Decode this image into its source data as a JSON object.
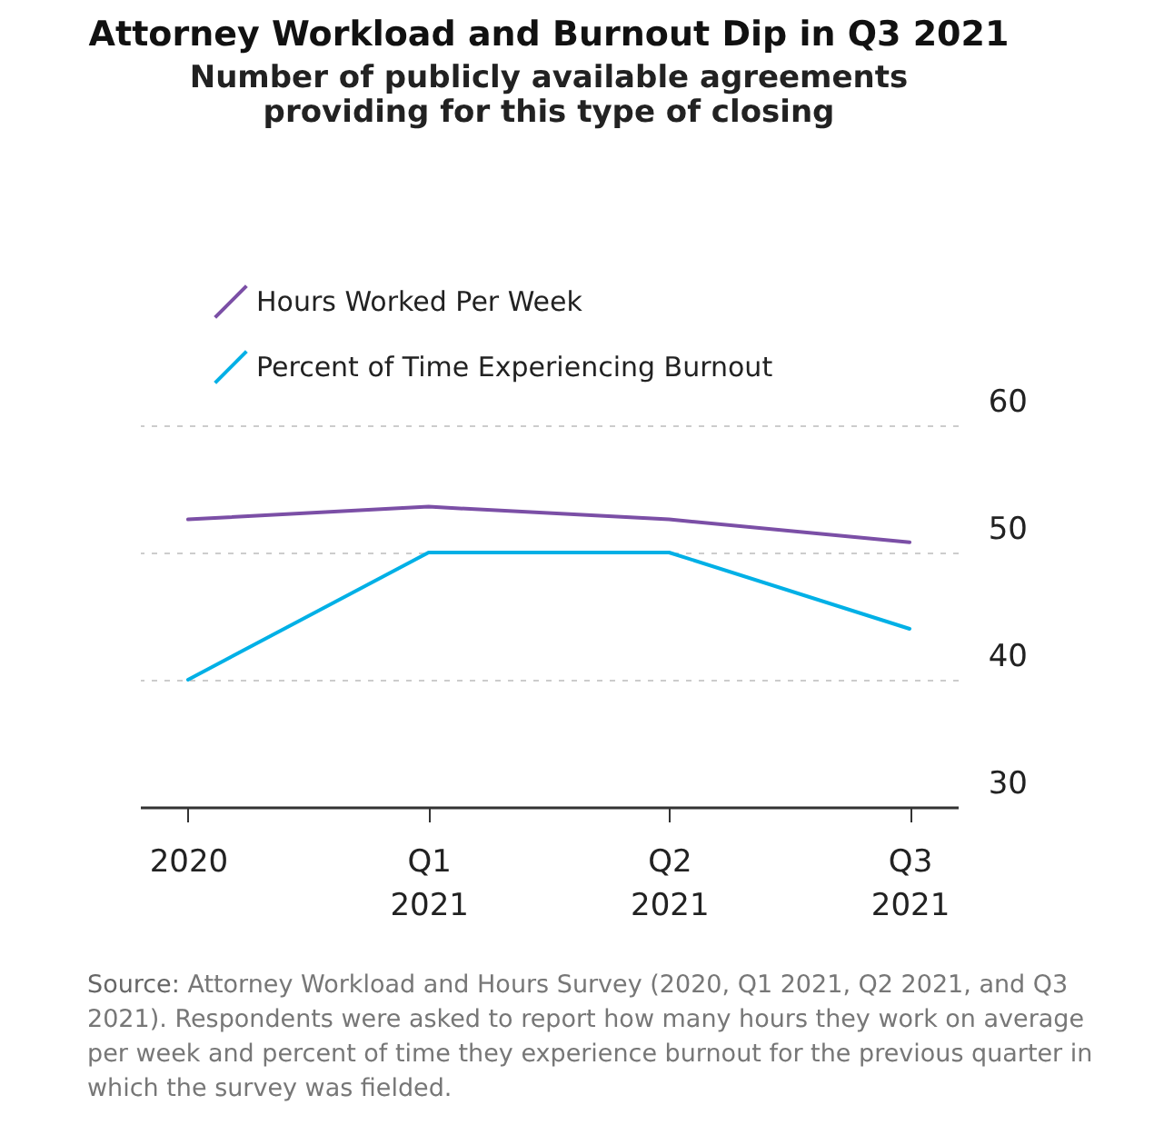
{
  "chart_data": {
    "type": "line",
    "title": "Attorney Workload and Burnout Dip in Q3 2021",
    "subtitle": "Number of publicly available agreements\nproviding for this type of closing",
    "categories": [
      "2020",
      "Q1 2021",
      "Q2 2021",
      "Q3 2021"
    ],
    "series": [
      {
        "name": "Hours Worked Per Week",
        "color": "#7b4fa6",
        "values": [
          52.6,
          53.6,
          52.6,
          50.8
        ]
      },
      {
        "name": "Percent of Time Experiencing Burnout",
        "color": "#00b0e6",
        "values": [
          40,
          50,
          50,
          44
        ]
      }
    ],
    "ylim": [
      30,
      60
    ],
    "yticks": [
      30,
      40,
      50,
      60
    ],
    "grid": "y",
    "legend": "top left",
    "marker": "none",
    "line_style": "solid",
    "annotations": [
      "Source: Attorney Workload and Hours Survey (2020, Q1 2021, Q2 2021, and Q3 2021). Respondents were asked to report how many hours they work on average per week and percent of time they experience burnout for the previous quarter in which the survey was fielded."
    ]
  }
}
